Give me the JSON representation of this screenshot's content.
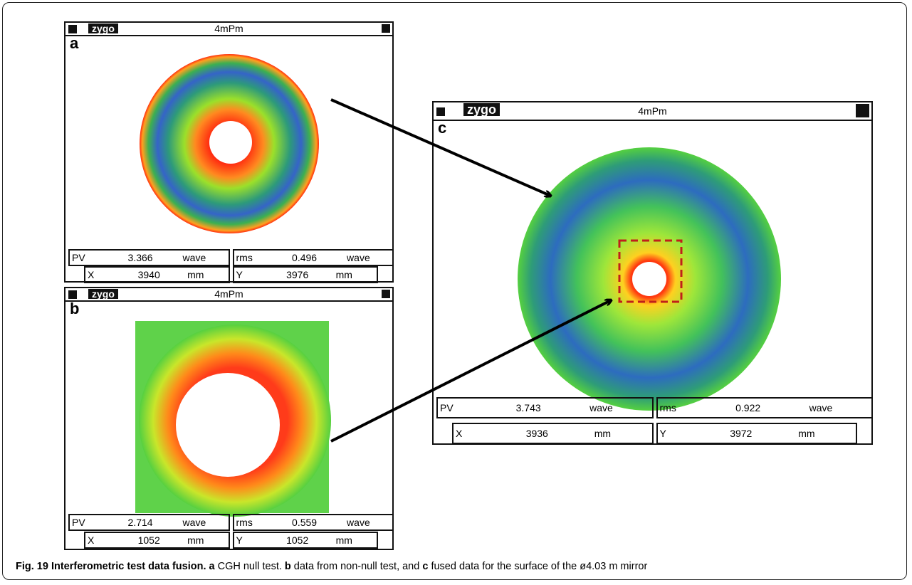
{
  "panels": [
    {
      "title": "4mPm",
      "logo": "zygo",
      "label": "a",
      "stats": [
        [
          "PV",
          "3.366",
          "wave"
        ],
        [
          "rms",
          "0.496",
          "wave"
        ],
        [
          "X",
          "3940",
          "mm"
        ],
        [
          "Y",
          "3976",
          "mm"
        ]
      ]
    },
    {
      "title": "4mPm",
      "logo": "zygo",
      "label": "b",
      "stats": [
        [
          "PV",
          "2.714",
          "wave"
        ],
        [
          "rms",
          "0.559",
          "wave"
        ],
        [
          "X",
          "1052",
          "mm"
        ],
        [
          "Y",
          "1052",
          "mm"
        ]
      ]
    },
    {
      "title": "4mPm",
      "logo": "zygo",
      "label": "c",
      "stats": [
        [
          "PV",
          "3.743",
          "wave"
        ],
        [
          "rms",
          "0.922",
          "wave"
        ],
        [
          "X",
          "3936",
          "mm"
        ],
        [
          "Y",
          "3972",
          "mm"
        ]
      ]
    }
  ],
  "caption": [
    {
      "text": "Fig. 19 Interferometric test data fusion.",
      "bold": true
    },
    {
      "text": " a",
      "bold": true
    },
    {
      "text": " CGH null test. ",
      "bold": false
    },
    {
      "text": "b",
      "bold": true
    },
    {
      "text": " data from non-null test, and ",
      "bold": false
    },
    {
      "text": "c",
      "bold": true
    },
    {
      "text": " fused data for the surface of the ø4.03 m mirror",
      "bold": false
    }
  ]
}
